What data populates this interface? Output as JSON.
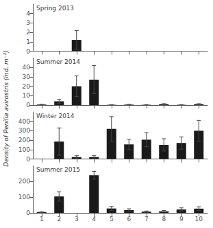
{
  "chart_data": [
    {
      "type": "bar",
      "title": "Spring 2013",
      "categories": [
        1,
        2,
        3,
        4,
        5,
        6,
        7,
        8,
        9,
        10
      ],
      "values": [
        0,
        0,
        1.2,
        0,
        0,
        0,
        0,
        0,
        0,
        0
      ],
      "errors": [
        0,
        0,
        1.0,
        0,
        0,
        0,
        0,
        0,
        0,
        0
      ],
      "color": "#1a1a1a",
      "ylim": [
        0,
        5
      ],
      "yticks": [
        0,
        1,
        2,
        3,
        4
      ],
      "grid": false,
      "tick_labels": "y"
    },
    {
      "type": "bar",
      "title": "Summer 2014",
      "categories": [
        1,
        2,
        3,
        4,
        5,
        6,
        7,
        8,
        9,
        10
      ],
      "values": [
        0.5,
        4.0,
        20.0,
        27.0,
        0.3,
        0.5,
        0.3,
        1.0,
        0.3,
        1.0
      ],
      "errors": [
        0.3,
        2.0,
        11.0,
        15.0,
        0.2,
        0.3,
        0.2,
        0.5,
        0.2,
        0.5
      ],
      "color": "#1a1a1a",
      "ylim": [
        0,
        50
      ],
      "yticks": [
        0,
        10,
        20,
        30,
        40
      ],
      "grid": false,
      "tick_labels": "y"
    },
    {
      "type": "bar",
      "title": "Winter 2014",
      "categories": [
        1,
        2,
        3,
        4,
        5,
        6,
        7,
        8,
        9,
        10
      ],
      "values": [
        0,
        185,
        20,
        20,
        320,
        155,
        205,
        150,
        170,
        300
      ],
      "errors": [
        0,
        145,
        15,
        15,
        130,
        55,
        75,
        65,
        65,
        110
      ],
      "color": "#1a1a1a",
      "ylim": [
        0,
        500
      ],
      "yticks": [
        0,
        100,
        200,
        300,
        400
      ],
      "grid": false,
      "tick_labels": "y"
    },
    {
      "type": "bar",
      "title": "Summer 2015",
      "categories": [
        1,
        2,
        3,
        4,
        5,
        6,
        7,
        8,
        9,
        10
      ],
      "values": [
        5,
        105,
        0,
        240,
        28,
        18,
        8,
        10,
        22,
        27
      ],
      "errors": [
        3,
        30,
        0,
        25,
        12,
        8,
        4,
        5,
        10,
        12
      ],
      "color": "#1a1a1a",
      "ylim": [
        0,
        300
      ],
      "yticks": [
        0,
        100,
        200
      ],
      "grid": false
    }
  ],
  "ylabel": "Density of Penilia avirostris (ind. m⁻²)"
}
